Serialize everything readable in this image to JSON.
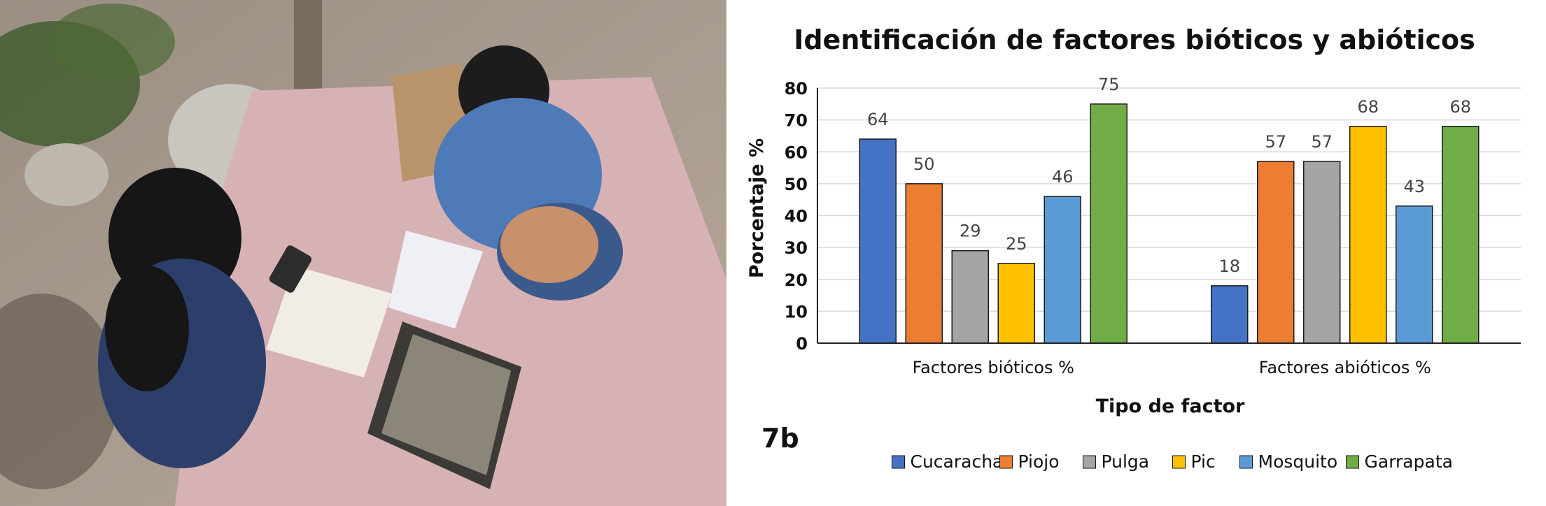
{
  "photo": {
    "description_icon": "photo-icon"
  },
  "chart_data": {
    "type": "bar",
    "title": "Identificación de factores bióticos y abióticos",
    "xlabel": "Tipo de factor",
    "ylabel": "Porcentaje %",
    "ylim": [
      0,
      80
    ],
    "yticks": [
      0,
      10,
      20,
      30,
      40,
      50,
      60,
      70,
      80
    ],
    "grid": true,
    "legend_position": "bottom",
    "panel_tag": "7b",
    "categories": [
      "Factores bióticos %",
      "Factores abióticos %"
    ],
    "series": [
      {
        "name": "Cucaracha",
        "color": "#4472C4",
        "values": [
          64,
          18
        ]
      },
      {
        "name": "Piojo",
        "color": "#ED7D31",
        "values": [
          50,
          57
        ]
      },
      {
        "name": "Pulga",
        "color": "#A5A5A5",
        "values": [
          29,
          57
        ]
      },
      {
        "name": "Pic",
        "color": "#FFC000",
        "values": [
          25,
          68
        ]
      },
      {
        "name": "Mosquito",
        "color": "#5B9BD5",
        "values": [
          46,
          43
        ]
      },
      {
        "name": "Garrapata",
        "color": "#70AD47",
        "values": [
          75,
          68
        ]
      }
    ]
  }
}
